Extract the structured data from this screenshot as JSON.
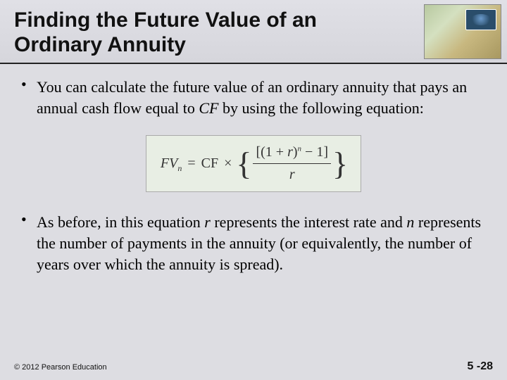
{
  "title_fontsize": 30,
  "body_fontsize": 22,
  "background_color": "#dddde2",
  "header": {
    "title_line1": "Finding the Future Value of an",
    "title_line2": "Ordinary Annuity"
  },
  "bullets": {
    "b1_part1": "You can calculate the future value of an ordinary annuity that pays an annual cash flow equal to ",
    "b1_cf": "CF",
    "b1_part2": " by using the following equation:",
    "b2_part1": "As before, in this equation ",
    "b2_r": "r",
    "b2_part2": " represents the interest rate and ",
    "b2_n": "n",
    "b2_part3": " represents the number of payments in the annuity (or equivalently, the number of years over which the annuity is spread)."
  },
  "formula": {
    "lhs_fv": "FV",
    "lhs_sub": "n",
    "eq": " = ",
    "cf": "CF",
    "times": " × ",
    "numer_open": "[(1 + ",
    "numer_r": "r",
    "numer_close": ")",
    "numer_exp": "n",
    "numer_tail": " − 1]",
    "denom": "r",
    "bg": "#e8eee4"
  },
  "footer": {
    "copyright": "© 2012 Pearson Education",
    "page": "5 -28"
  }
}
